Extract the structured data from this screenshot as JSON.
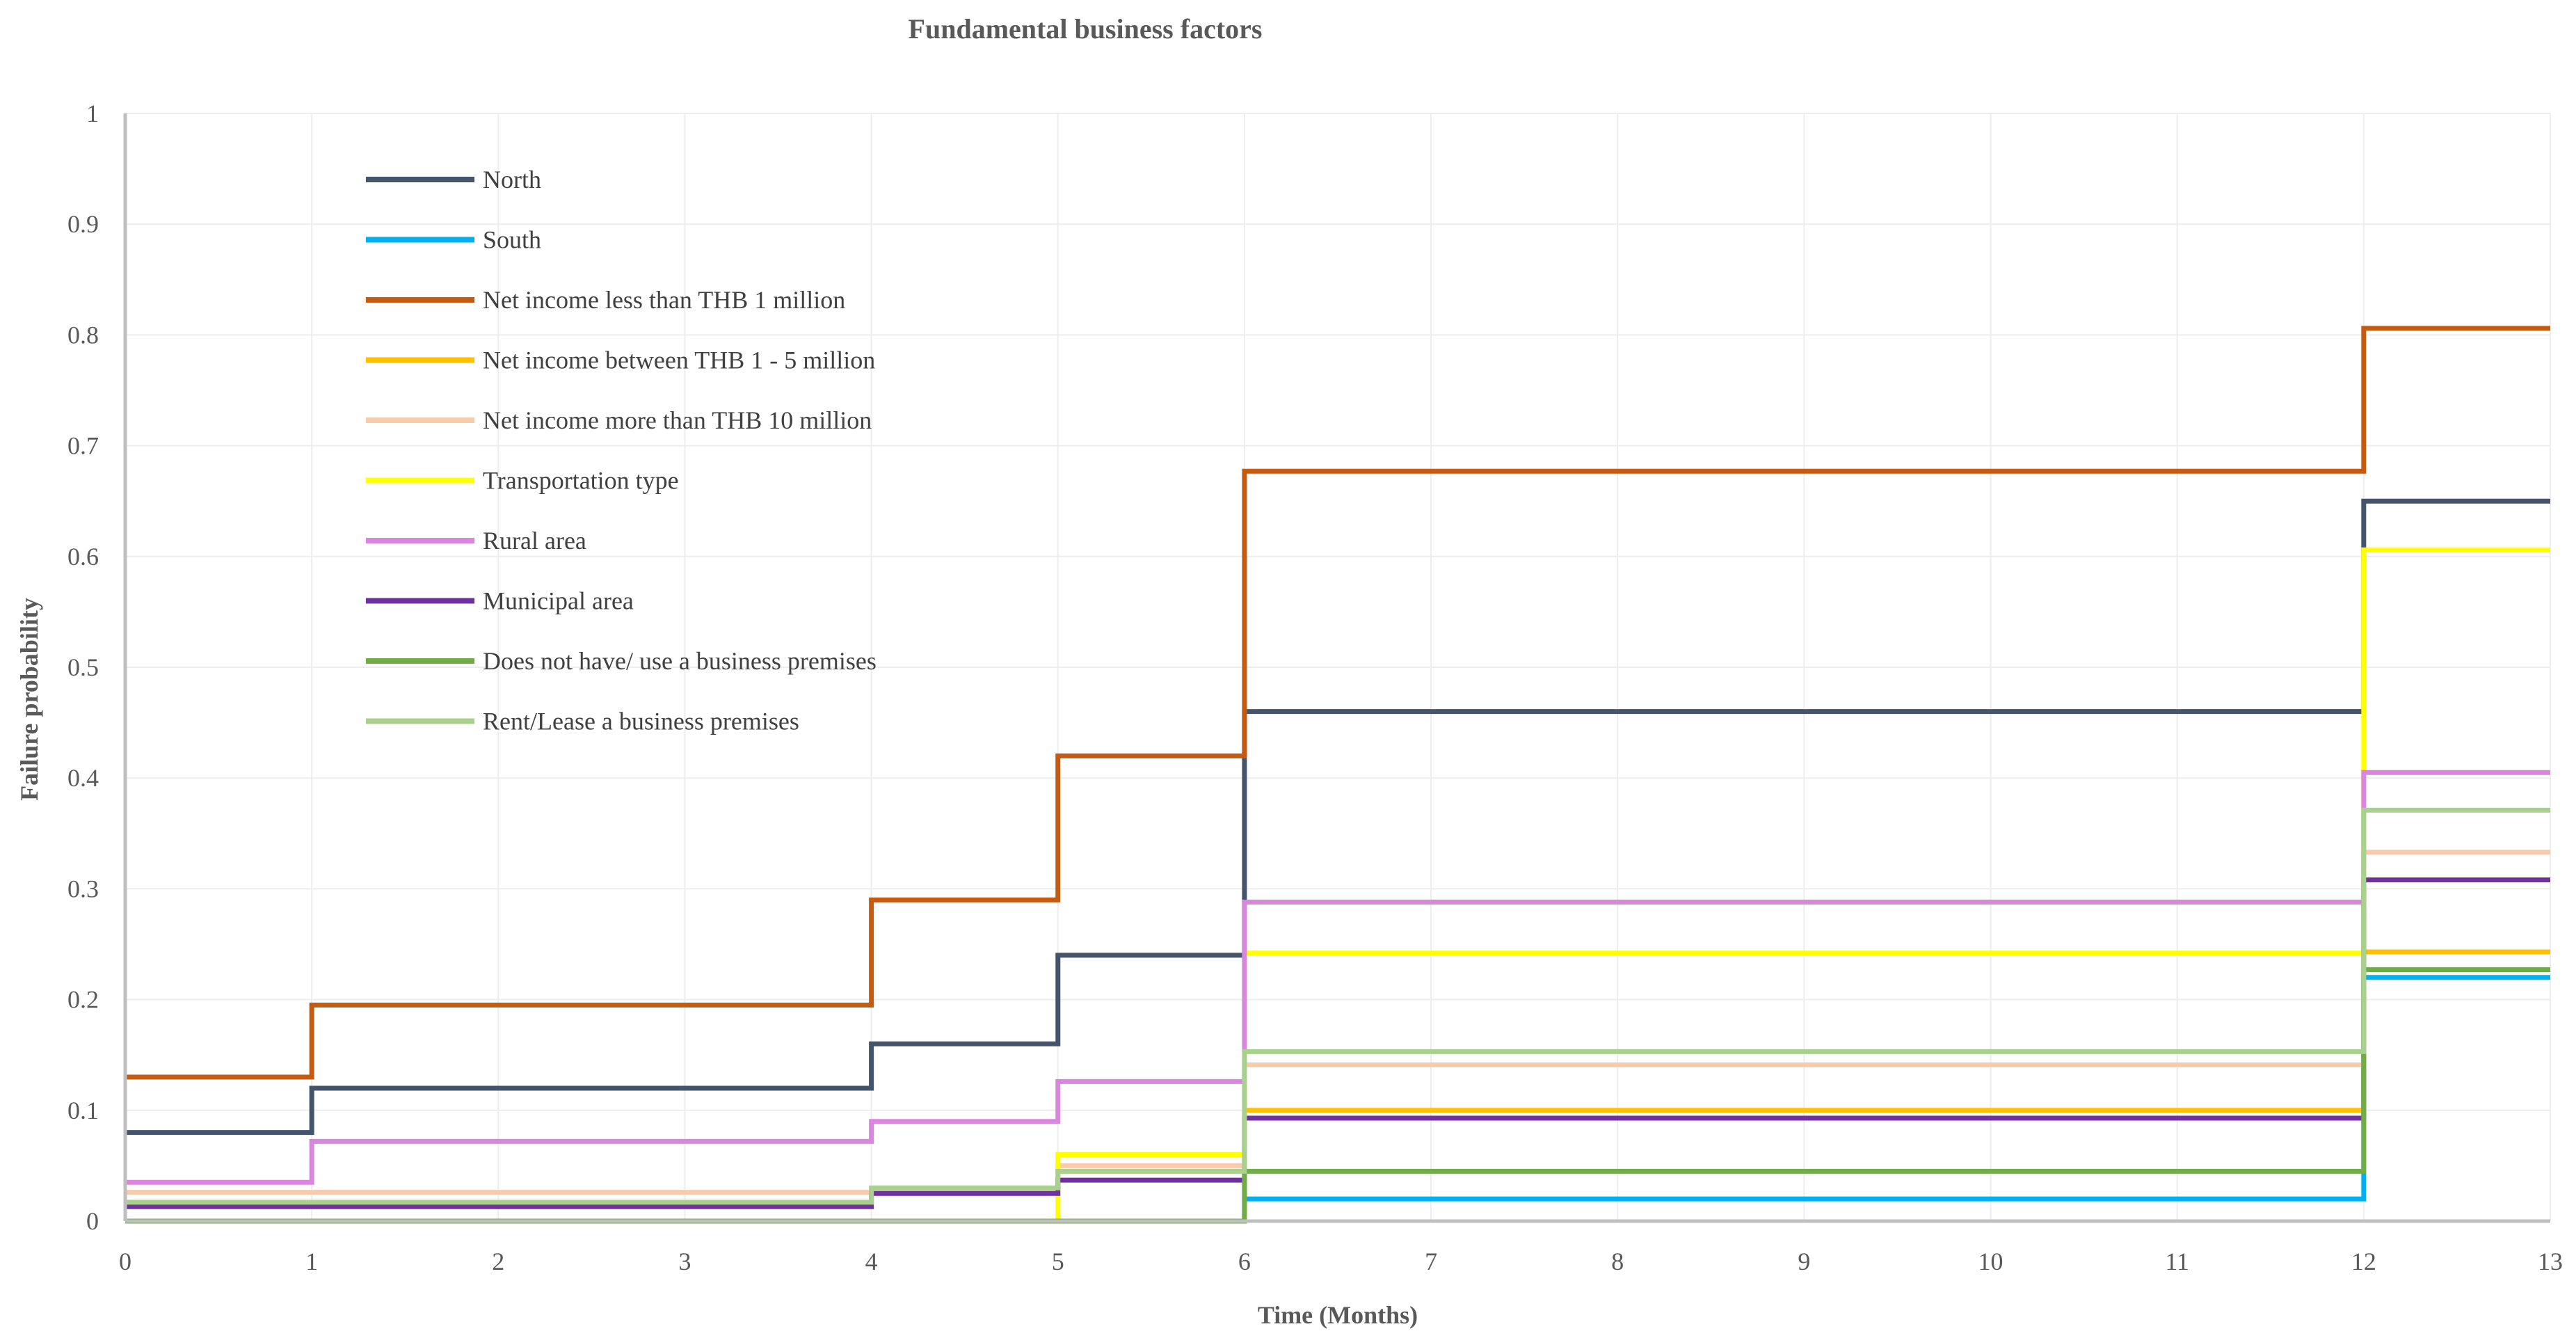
{
  "chart_data": {
    "type": "line",
    "step": true,
    "title": "Fundamental business factors",
    "xlabel": "Time (Months)",
    "ylabel": "Failure probability",
    "xlim": [
      0,
      13
    ],
    "ylim": [
      0,
      1
    ],
    "x_ticks": [
      "0",
      "1",
      "2",
      "3",
      "4",
      "5",
      "6",
      "7",
      "8",
      "9",
      "10",
      "11",
      "12",
      "13"
    ],
    "y_ticks": [
      "0",
      "0.1",
      "0.2",
      "0.3",
      "0.4",
      "0.5",
      "0.6",
      "0.7",
      "0.8",
      "0.9",
      "1"
    ],
    "grid": true,
    "legend_position": "upper-left",
    "x": [
      0,
      1,
      4,
      5,
      6,
      12,
      13
    ],
    "series": [
      {
        "name": "North",
        "color": "#44546A",
        "values": [
          0.08,
          0.12,
          0.16,
          0.24,
          0.46,
          0.65,
          0.65
        ]
      },
      {
        "name": "South",
        "color": "#00B0F0",
        "values": [
          0,
          0,
          0,
          0,
          0.02,
          0.22,
          0.22
        ]
      },
      {
        "name": "Net income less than THB 1 million",
        "color": "#C55A11",
        "values": [
          0.13,
          0.195,
          0.29,
          0.42,
          0.677,
          0.806,
          0.806
        ]
      },
      {
        "name": "Net income between THB 1 - 5 million",
        "color": "#FFC000",
        "values": [
          0,
          0,
          0,
          0,
          0.1,
          0.243,
          0.243
        ]
      },
      {
        "name": "Net income more than THB 10 million",
        "color": "#F8CBAD",
        "values": [
          0.026,
          0.026,
          0.026,
          0.05,
          0.141,
          0.333,
          0.333
        ]
      },
      {
        "name": "Transportation type",
        "color": "#FFFF00",
        "values": [
          0,
          0,
          0,
          0.06,
          0.242,
          0.606,
          0.606
        ]
      },
      {
        "name": "Rural area",
        "color": "#DA85DE",
        "values": [
          0.035,
          0.072,
          0.09,
          0.126,
          0.288,
          0.405,
          0.405
        ]
      },
      {
        "name": "Municipal area",
        "color": "#7030A0",
        "values": [
          0.013,
          0.013,
          0.025,
          0.037,
          0.093,
          0.308,
          0.308
        ]
      },
      {
        "name": "Does not have/ use a business premises",
        "color": "#70AD47",
        "values": [
          0,
          0,
          0,
          0,
          0.045,
          0.227,
          0.227
        ]
      },
      {
        "name": "Rent/Lease a business premises",
        "color": "#A9D18E",
        "values": [
          0.017,
          0.017,
          0.03,
          0.045,
          0.153,
          0.371,
          0.371
        ]
      }
    ]
  }
}
